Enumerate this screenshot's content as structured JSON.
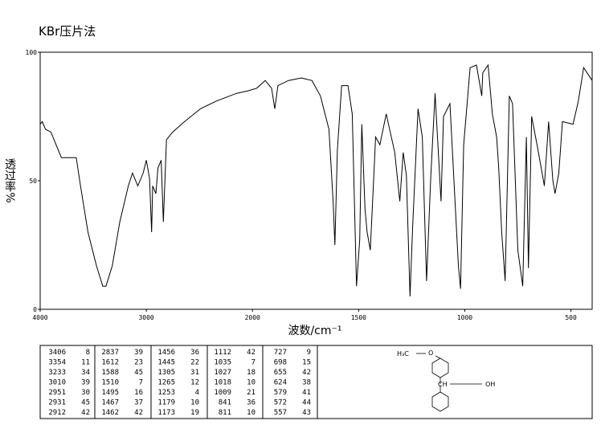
{
  "chart_data": {
    "type": "line",
    "title": "KBr压片法",
    "x_label": "波数/cm⁻¹",
    "y_label": "透过率%",
    "color": "#000000",
    "xlim": [
      4000,
      400
    ],
    "x_break": 2000,
    "xticks": [
      4000,
      3000,
      2000,
      1500,
      1000,
      500
    ],
    "ylim": [
      0,
      100
    ],
    "yticks": [
      0,
      50,
      100
    ],
    "x": [
      4000,
      3980,
      3950,
      3900,
      3850,
      3800,
      3660,
      3620,
      3550,
      3470,
      3410,
      3380,
      3320,
      3250,
      3170,
      3130,
      3080,
      3030,
      3000,
      2970,
      2950,
      2940,
      2910,
      2890,
      2860,
      2840,
      2810,
      2750,
      2640,
      2490,
      2340,
      2150,
      2040,
      1980,
      1940,
      1910,
      1895,
      1880,
      1830,
      1770,
      1720,
      1680,
      1640,
      1620,
      1612,
      1600,
      1580,
      1550,
      1530,
      1510,
      1495,
      1485,
      1470,
      1460,
      1445,
      1420,
      1400,
      1370,
      1330,
      1306,
      1290,
      1275,
      1258,
      1245,
      1220,
      1200,
      1180,
      1160,
      1140,
      1112,
      1100,
      1070,
      1030,
      1020,
      1005,
      975,
      945,
      920,
      915,
      890,
      870,
      850,
      840,
      826,
      810,
      790,
      775,
      750,
      727,
      710,
      700,
      685,
      655,
      625,
      605,
      585,
      575,
      557,
      540,
      490,
      465,
      440,
      400
    ],
    "values": [
      72,
      73,
      70,
      69,
      64,
      59,
      59,
      48,
      30,
      17,
      9,
      9,
      17,
      34,
      48,
      53,
      48,
      53,
      58,
      51,
      30,
      48,
      45,
      55,
      58,
      34,
      66,
      69,
      73,
      78,
      81,
      84,
      85,
      86,
      89,
      86,
      78,
      87,
      89,
      90,
      89,
      83,
      70,
      42,
      25,
      62,
      87,
      87,
      76,
      9,
      27,
      72,
      39,
      30,
      23,
      67,
      64,
      76,
      61,
      42,
      61,
      52,
      5,
      33,
      78,
      67,
      11,
      52,
      84,
      42,
      75,
      80,
      17,
      8,
      64,
      94,
      95,
      83,
      92,
      95,
      76,
      67,
      55,
      30,
      11,
      83,
      80,
      23,
      9,
      67,
      16,
      75,
      62,
      48,
      73,
      50,
      45,
      53,
      73,
      72,
      81,
      94,
      89
    ]
  },
  "peak_table": [
    [
      3406,
      8,
      2837,
      39,
      1456,
      36,
      1112,
      42,
      727,
      9
    ],
    [
      3354,
      11,
      1612,
      23,
      1445,
      22,
      1035,
      7,
      698,
      15
    ],
    [
      3233,
      34,
      1588,
      45,
      1305,
      31,
      1027,
      18,
      655,
      42
    ],
    [
      3010,
      39,
      1510,
      7,
      1265,
      12,
      1018,
      10,
      624,
      38
    ],
    [
      2951,
      30,
      1495,
      16,
      1253,
      4,
      1009,
      21,
      579,
      41
    ],
    [
      2931,
      45,
      1467,
      37,
      1179,
      10,
      841,
      36,
      572,
      44
    ],
    [
      2912,
      42,
      1462,
      42,
      1173,
      19,
      811,
      10,
      557,
      43
    ]
  ],
  "structure": {
    "methyl": "H₃C",
    "oxygen": "O",
    "methine": "CH",
    "hydroxyl": "OH"
  }
}
